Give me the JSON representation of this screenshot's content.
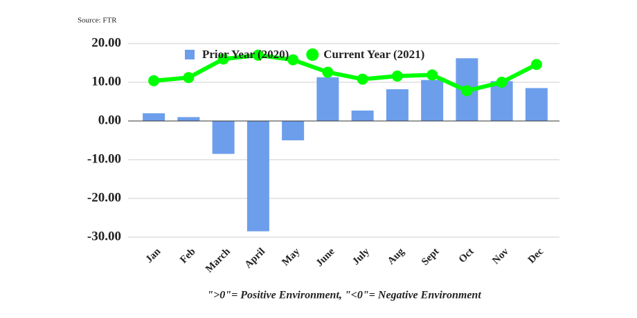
{
  "chart_data": {
    "type": "bar_line",
    "source": "Source: FTR",
    "footnote": "\">0\"= Positive Environment, \"<0\"= Negative Environment",
    "categories": [
      "Jan",
      "Feb",
      "March",
      "April",
      "May",
      "June",
      "July",
      "Aug",
      "Sept",
      "Oct",
      "Nov",
      "Dec"
    ],
    "series": [
      {
        "name": "Prior Year (2020)",
        "type": "bar",
        "color": "#6d9eeb",
        "values": [
          2.0,
          1.0,
          -8.5,
          -28.5,
          -5.0,
          11.3,
          2.7,
          8.2,
          10.6,
          16.2,
          10.3,
          8.5
        ]
      },
      {
        "name": "Current Year (2021)",
        "type": "line",
        "color": "#00ff00",
        "values": [
          10.4,
          11.2,
          16.0,
          17.0,
          15.8,
          12.6,
          10.8,
          11.6,
          11.9,
          7.8,
          10.0,
          14.6
        ]
      }
    ],
    "ylim": [
      -30,
      20
    ],
    "yticks": [
      {
        "value": 20,
        "label": "20.00"
      },
      {
        "value": 10,
        "label": "10.00"
      },
      {
        "value": 0,
        "label": "0.00"
      },
      {
        "value": -10,
        "label": "-10.00"
      },
      {
        "value": -20,
        "label": "-20.00"
      },
      {
        "value": -30,
        "label": "-30.00"
      }
    ],
    "grid": true
  }
}
